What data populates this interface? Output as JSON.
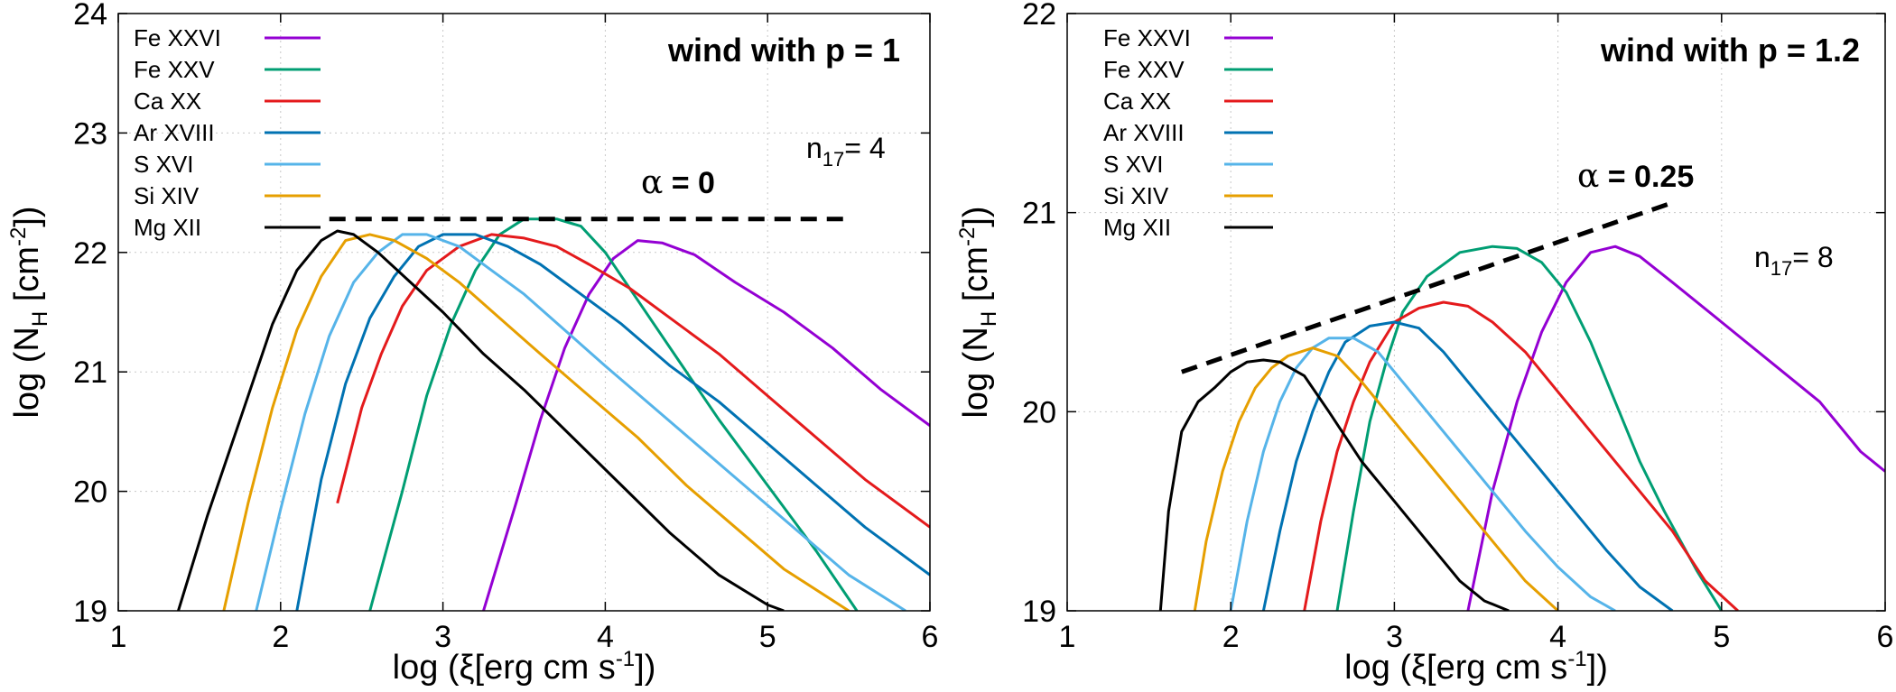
{
  "chart_data": [
    {
      "type": "line",
      "title": "wind with p = 1",
      "xlabel": "log (ξ[erg cm s-1])",
      "xlabel_main": "log (ξ[erg cm s",
      "xlabel_sup": "-1",
      "xlabel_end": "])",
      "ylabel": "log (NH [cm-2])",
      "ylabel_main": "log (N",
      "ylabel_sub": "H",
      "ylabel_mid": " [cm",
      "ylabel_sup": "-2",
      "ylabel_end": "])",
      "xlim": [
        1,
        6
      ],
      "ylim": [
        19,
        24
      ],
      "xticks": [
        1,
        2,
        3,
        4,
        5,
        6
      ],
      "yticks": [
        19,
        20,
        21,
        22,
        23,
        24
      ],
      "grid": true,
      "legend_position": "top-left",
      "n17_label": "n",
      "n17_sub": "17",
      "n17_value": "= 4",
      "alpha_symbol": "α",
      "alpha_value": "= 0",
      "dashed_line": {
        "x": [
          2.3,
          5.5
        ],
        "y": [
          22.28,
          22.28
        ]
      },
      "series": [
        {
          "name": "Fe XXVI",
          "color": "#9400d3",
          "x": [
            3.25,
            3.45,
            3.6,
            3.75,
            3.9,
            4.05,
            4.2,
            4.35,
            4.55,
            4.8,
            5.1,
            5.4,
            5.7,
            6.0
          ],
          "y": [
            19.0,
            19.9,
            20.6,
            21.2,
            21.65,
            21.95,
            22.1,
            22.08,
            21.98,
            21.75,
            21.5,
            21.2,
            20.85,
            20.55
          ]
        },
        {
          "name": "Fe XXV",
          "color": "#009e73",
          "x": [
            2.55,
            2.75,
            2.9,
            3.05,
            3.2,
            3.35,
            3.5,
            3.7,
            3.85,
            4.0,
            4.2,
            4.45,
            4.7,
            5.0,
            5.3,
            5.55
          ],
          "y": [
            19.0,
            20.0,
            20.8,
            21.4,
            21.85,
            22.15,
            22.28,
            22.28,
            22.22,
            22.0,
            21.6,
            21.1,
            20.6,
            20.05,
            19.5,
            19.0
          ]
        },
        {
          "name": "Ca XX",
          "color": "#e41a1c",
          "x": [
            2.35,
            2.5,
            2.62,
            2.75,
            2.9,
            3.1,
            3.3,
            3.5,
            3.7,
            3.9,
            4.15,
            4.4,
            4.7,
            5.0,
            5.3,
            5.6,
            6.0
          ],
          "y": [
            19.9,
            20.7,
            21.15,
            21.55,
            21.85,
            22.05,
            22.15,
            22.12,
            22.05,
            21.9,
            21.7,
            21.45,
            21.15,
            20.8,
            20.45,
            20.1,
            19.7
          ]
        },
        {
          "name": "Ar XVIII",
          "color": "#0072b2",
          "x": [
            2.1,
            2.25,
            2.4,
            2.55,
            2.7,
            2.85,
            3.0,
            3.2,
            3.4,
            3.6,
            3.85,
            4.1,
            4.4,
            4.7,
            5.0,
            5.3,
            5.6,
            6.0
          ],
          "y": [
            19.0,
            20.1,
            20.9,
            21.45,
            21.8,
            22.05,
            22.15,
            22.15,
            22.05,
            21.9,
            21.65,
            21.4,
            21.05,
            20.75,
            20.4,
            20.05,
            19.7,
            19.3
          ]
        },
        {
          "name": "S XVI",
          "color": "#56b4e9",
          "x": [
            1.85,
            2.0,
            2.15,
            2.3,
            2.45,
            2.6,
            2.75,
            2.9,
            3.1,
            3.3,
            3.5,
            3.75,
            4.0,
            4.3,
            4.6,
            4.9,
            5.2,
            5.5,
            5.85
          ],
          "y": [
            19.0,
            19.85,
            20.65,
            21.3,
            21.75,
            22.0,
            22.15,
            22.15,
            22.05,
            21.85,
            21.65,
            21.35,
            21.05,
            20.7,
            20.35,
            20.0,
            19.65,
            19.3,
            19.0
          ]
        },
        {
          "name": "Si XIV",
          "color": "#e69f00",
          "x": [
            1.65,
            1.8,
            1.95,
            2.1,
            2.25,
            2.4,
            2.55,
            2.7,
            2.9,
            3.1,
            3.35,
            3.6,
            3.9,
            4.2,
            4.5,
            4.8,
            5.1,
            5.5
          ],
          "y": [
            19.0,
            19.9,
            20.7,
            21.35,
            21.8,
            22.1,
            22.15,
            22.1,
            21.95,
            21.75,
            21.45,
            21.15,
            20.8,
            20.45,
            20.05,
            19.7,
            19.35,
            19.0
          ]
        },
        {
          "name": "Mg XII",
          "color": "#000000",
          "x": [
            1.37,
            1.55,
            1.75,
            1.95,
            2.1,
            2.25,
            2.35,
            2.45,
            2.6,
            2.8,
            3.0,
            3.25,
            3.5,
            3.8,
            4.1,
            4.4,
            4.7,
            5.0,
            5.1
          ],
          "y": [
            19.0,
            19.8,
            20.6,
            21.4,
            21.85,
            22.1,
            22.18,
            22.15,
            22.0,
            21.75,
            21.5,
            21.15,
            20.85,
            20.45,
            20.05,
            19.65,
            19.3,
            19.05,
            19.0
          ]
        }
      ]
    },
    {
      "type": "line",
      "title": "wind with p = 1.2",
      "xlabel": "log (ξ[erg cm s-1])",
      "xlabel_main": "log (ξ[erg cm s",
      "xlabel_sup": "-1",
      "xlabel_end": "])",
      "ylabel": "log (NH [cm-2])",
      "ylabel_main": "log (N",
      "ylabel_sub": "H",
      "ylabel_mid": " [cm",
      "ylabel_sup": "-2",
      "ylabel_end": "])",
      "xlim": [
        1,
        6
      ],
      "ylim": [
        19,
        22
      ],
      "xticks": [
        1,
        2,
        3,
        4,
        5,
        6
      ],
      "yticks": [
        19,
        20,
        21,
        22
      ],
      "grid": true,
      "legend_position": "top-left",
      "n17_label": "n",
      "n17_sub": "17",
      "n17_value": "= 8",
      "alpha_symbol": "α",
      "alpha_value": "= 0.25",
      "dashed_line": {
        "x": [
          1.7,
          4.7
        ],
        "y": [
          20.2,
          21.05
        ]
      },
      "series": [
        {
          "name": "Fe XXVI",
          "color": "#9400d3",
          "x": [
            3.45,
            3.6,
            3.75,
            3.9,
            4.05,
            4.2,
            4.35,
            4.5,
            4.7,
            5.0,
            5.3,
            5.6,
            5.85,
            6.0
          ],
          "y": [
            19.0,
            19.6,
            20.05,
            20.4,
            20.65,
            20.8,
            20.83,
            20.78,
            20.65,
            20.45,
            20.25,
            20.05,
            19.8,
            19.7
          ]
        },
        {
          "name": "Fe XXV",
          "color": "#009e73",
          "x": [
            2.65,
            2.75,
            2.85,
            2.95,
            3.05,
            3.2,
            3.4,
            3.6,
            3.75,
            3.9,
            4.05,
            4.2,
            4.35,
            4.5,
            4.65,
            4.85,
            5.0
          ],
          "y": [
            19.0,
            19.5,
            19.95,
            20.25,
            20.5,
            20.68,
            20.8,
            20.83,
            20.82,
            20.75,
            20.6,
            20.35,
            20.05,
            19.75,
            19.5,
            19.2,
            19.0
          ]
        },
        {
          "name": "Ca XX",
          "color": "#e41a1c",
          "x": [
            2.45,
            2.55,
            2.65,
            2.75,
            2.85,
            3.0,
            3.15,
            3.3,
            3.45,
            3.6,
            3.8,
            4.0,
            4.2,
            4.45,
            4.7,
            4.9,
            5.1
          ],
          "y": [
            19.0,
            19.45,
            19.8,
            20.05,
            20.25,
            20.45,
            20.52,
            20.55,
            20.53,
            20.45,
            20.3,
            20.1,
            19.9,
            19.65,
            19.4,
            19.15,
            19.0
          ]
        },
        {
          "name": "Ar XVIII",
          "color": "#0072b2",
          "x": [
            2.2,
            2.3,
            2.4,
            2.5,
            2.6,
            2.7,
            2.85,
            3.0,
            3.15,
            3.3,
            3.5,
            3.7,
            3.9,
            4.1,
            4.3,
            4.5,
            4.7
          ],
          "y": [
            19.0,
            19.4,
            19.75,
            20.0,
            20.2,
            20.35,
            20.43,
            20.45,
            20.42,
            20.3,
            20.1,
            19.9,
            19.7,
            19.5,
            19.3,
            19.12,
            19.0
          ]
        },
        {
          "name": "S XVI",
          "color": "#56b4e9",
          "x": [
            2.0,
            2.1,
            2.2,
            2.3,
            2.4,
            2.5,
            2.6,
            2.75,
            2.9,
            3.05,
            3.2,
            3.4,
            3.6,
            3.8,
            4.0,
            4.2,
            4.35
          ],
          "y": [
            19.0,
            19.45,
            19.8,
            20.05,
            20.22,
            20.32,
            20.37,
            20.37,
            20.3,
            20.15,
            20.0,
            19.8,
            19.6,
            19.4,
            19.22,
            19.07,
            19.0
          ]
        },
        {
          "name": "Si XIV",
          "color": "#e69f00",
          "x": [
            1.78,
            1.85,
            1.95,
            2.05,
            2.15,
            2.25,
            2.35,
            2.5,
            2.65,
            2.8,
            3.0,
            3.2,
            3.4,
            3.6,
            3.8,
            4.0
          ],
          "y": [
            19.0,
            19.35,
            19.7,
            19.95,
            20.12,
            20.22,
            20.28,
            20.32,
            20.28,
            20.15,
            19.95,
            19.75,
            19.55,
            19.35,
            19.15,
            19.0
          ]
        },
        {
          "name": "Mg XII",
          "color": "#000000",
          "x": [
            1.57,
            1.62,
            1.7,
            1.8,
            1.9,
            2.0,
            2.1,
            2.2,
            2.3,
            2.45,
            2.6,
            2.8,
            3.0,
            3.2,
            3.4,
            3.55,
            3.7
          ],
          "y": [
            19.0,
            19.5,
            19.9,
            20.05,
            20.12,
            20.2,
            20.25,
            20.26,
            20.25,
            20.18,
            20.0,
            19.75,
            19.55,
            19.35,
            19.15,
            19.05,
            19.0
          ]
        }
      ]
    }
  ]
}
